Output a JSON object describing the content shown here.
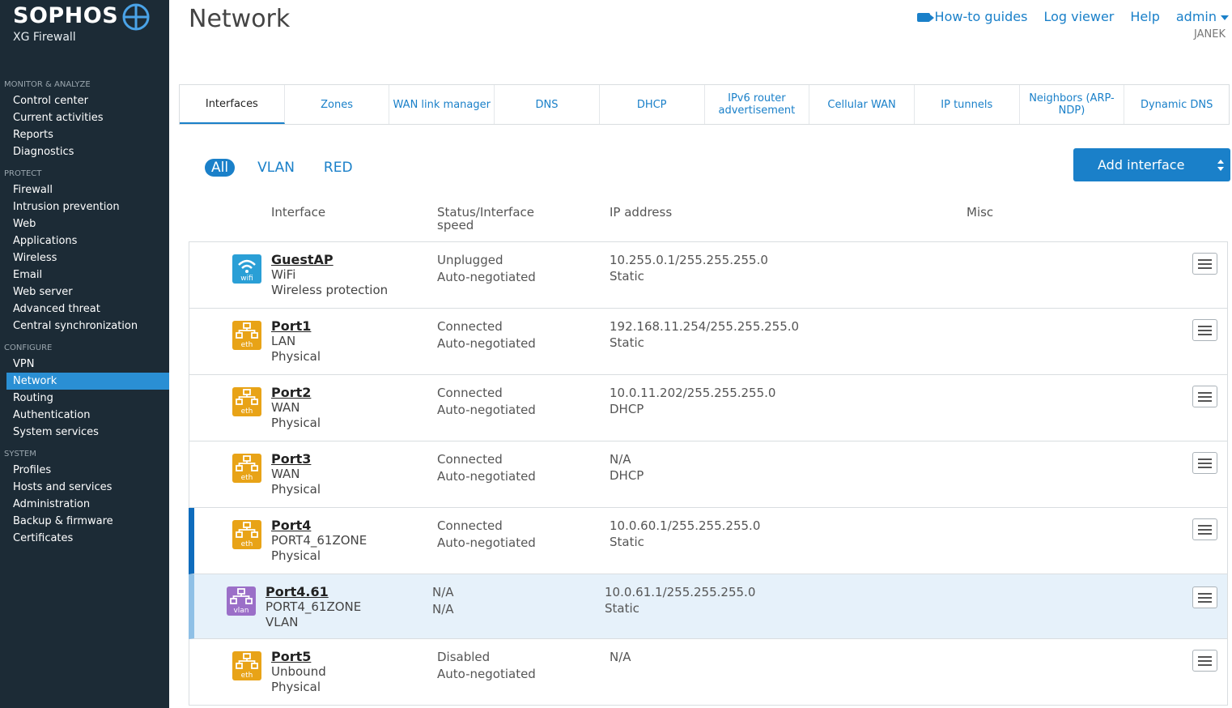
{
  "brand": {
    "name": "SOPHOS",
    "product": "XG Firewall"
  },
  "sidebar": {
    "sections": [
      {
        "title": "MONITOR & ANALYZE",
        "items": [
          "Control center",
          "Current activities",
          "Reports",
          "Diagnostics"
        ]
      },
      {
        "title": "PROTECT",
        "items": [
          "Firewall",
          "Intrusion prevention",
          "Web",
          "Applications",
          "Wireless",
          "Email",
          "Web server",
          "Advanced threat",
          "Central synchronization"
        ]
      },
      {
        "title": "CONFIGURE",
        "items": [
          "VPN",
          "Network",
          "Routing",
          "Authentication",
          "System services"
        ]
      },
      {
        "title": "SYSTEM",
        "items": [
          "Profiles",
          "Hosts and services",
          "Administration",
          "Backup & firmware",
          "Certificates"
        ]
      }
    ],
    "active_item": "Network"
  },
  "header": {
    "title": "Network",
    "links": {
      "howto": "How-to guides",
      "log": "Log viewer",
      "help": "Help",
      "user": "admin"
    },
    "user_sub": "JANEK"
  },
  "tabs": [
    "Interfaces",
    "Zones",
    "WAN link manager",
    "DNS",
    "DHCP",
    "IPv6 router advertisement",
    "Cellular WAN",
    "IP tunnels",
    "Neighbors (ARP-NDP)",
    "Dynamic DNS"
  ],
  "active_tab": "Interfaces",
  "filters": [
    "All",
    "VLAN",
    "RED"
  ],
  "active_filter": "All",
  "add_button": "Add interface",
  "columns": {
    "interface": "Interface",
    "status": "Status/Interface speed",
    "ip": "IP address",
    "misc": "Misc"
  },
  "rows": [
    {
      "icon": "wifi",
      "icon_label": "wifi",
      "name": "GuestAP",
      "zone": "WiFi",
      "type": "Wireless protection",
      "status": "Unplugged",
      "speed": "Auto-negotiated",
      "ip": "10.255.0.1/255.255.255.0",
      "mode": "Static"
    },
    {
      "icon": "eth",
      "icon_label": "eth",
      "name": "Port1",
      "zone": "LAN",
      "type": "Physical",
      "status": "Connected",
      "speed": "Auto-negotiated",
      "ip": "192.168.11.254/255.255.255.0",
      "mode": "Static"
    },
    {
      "icon": "eth",
      "icon_label": "eth",
      "name": "Port2",
      "zone": "WAN",
      "type": "Physical",
      "status": "Connected",
      "speed": "Auto-negotiated",
      "ip": "10.0.11.202/255.255.255.0",
      "mode": "DHCP"
    },
    {
      "icon": "eth",
      "icon_label": "eth",
      "name": "Port3",
      "zone": "WAN",
      "type": "Physical",
      "status": "Connected",
      "speed": "Auto-negotiated",
      "ip": "N/A",
      "mode": "DHCP"
    },
    {
      "icon": "eth",
      "icon_label": "eth",
      "name": "Port4",
      "zone": "PORT4_61ZONE",
      "type": "Physical",
      "status": "Connected",
      "speed": "Auto-negotiated",
      "ip": "10.0.60.1/255.255.255.0",
      "mode": "Static"
    },
    {
      "icon": "vlan",
      "icon_label": "vlan",
      "name": "Port4.61",
      "zone": "PORT4_61ZONE",
      "type": "VLAN",
      "status": "N/A",
      "speed": "N/A",
      "ip": "10.0.61.1/255.255.255.0",
      "mode": "Static"
    },
    {
      "icon": "eth",
      "icon_label": "eth",
      "name": "Port5",
      "zone": "Unbound",
      "type": "Physical",
      "status": "Disabled",
      "speed": "Auto-negotiated",
      "ip": "N/A",
      "mode": ""
    }
  ],
  "colors": {
    "sidebar_bg": "#1c2b36",
    "accent": "#1a80c9",
    "eth_icon": "#e8a317",
    "vlan_icon": "#9b6fc8",
    "wifi_icon": "#2a9fd6"
  }
}
